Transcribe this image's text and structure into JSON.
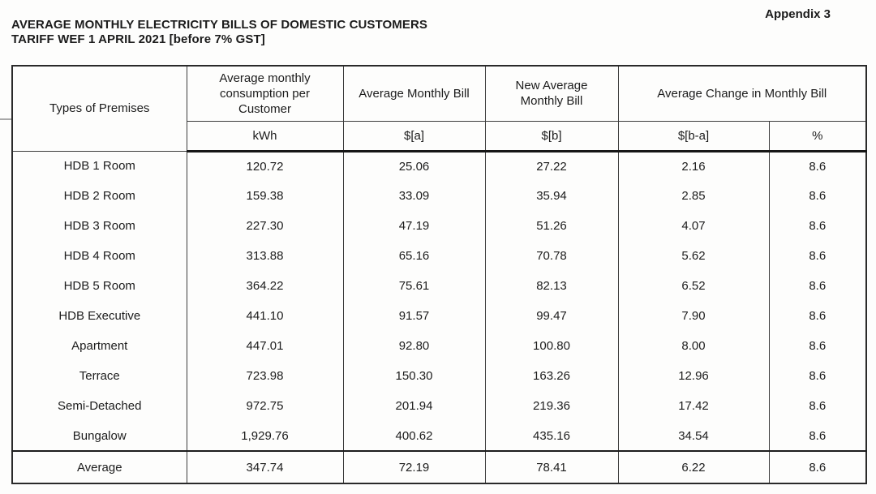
{
  "page": {
    "appendix": "Appendix 3",
    "title_line1": "AVERAGE MONTHLY ELECTRICITY BILLS OF DOMESTIC CUSTOMERS",
    "title_line2": "TARIFF WEF 1 APRIL 2021 [before 7% GST]"
  },
  "table": {
    "header": {
      "premises": "Types of Premises",
      "consumption": "Average monthly consumption per Customer",
      "avg_bill": "Average Monthly Bill",
      "new_avg_bill": "New Average Monthly Bill",
      "avg_change": "Average Change in Monthly Bill",
      "units": [
        "kWh",
        "$[a]",
        "$[b]",
        "$[b-a]",
        "%"
      ]
    },
    "rows": [
      {
        "premises": "HDB 1 Room",
        "values": [
          "120.72",
          "25.06",
          "27.22",
          "2.16",
          "8.6"
        ]
      },
      {
        "premises": "HDB 2 Room",
        "values": [
          "159.38",
          "33.09",
          "35.94",
          "2.85",
          "8.6"
        ]
      },
      {
        "premises": "HDB 3 Room",
        "values": [
          "227.30",
          "47.19",
          "51.26",
          "4.07",
          "8.6"
        ]
      },
      {
        "premises": "HDB 4 Room",
        "values": [
          "313.88",
          "65.16",
          "70.78",
          "5.62",
          "8.6"
        ]
      },
      {
        "premises": "HDB 5 Room",
        "values": [
          "364.22",
          "75.61",
          "82.13",
          "6.52",
          "8.6"
        ]
      },
      {
        "premises": "HDB Executive",
        "values": [
          "441.10",
          "91.57",
          "99.47",
          "7.90",
          "8.6"
        ]
      },
      {
        "premises": "Apartment",
        "values": [
          "447.01",
          "92.80",
          "100.80",
          "8.00",
          "8.6"
        ]
      },
      {
        "premises": "Terrace",
        "values": [
          "723.98",
          "150.30",
          "163.26",
          "12.96",
          "8.6"
        ]
      },
      {
        "premises": "Semi-Detached",
        "values": [
          "972.75",
          "201.94",
          "219.36",
          "17.42",
          "8.6"
        ]
      },
      {
        "premises": "Bungalow",
        "values": [
          "1,929.76",
          "400.62",
          "435.16",
          "34.54",
          "8.6"
        ]
      }
    ],
    "average_row": {
      "premises": "Average",
      "values": [
        "347.74",
        "72.19",
        "78.41",
        "6.22",
        "8.6"
      ]
    }
  }
}
